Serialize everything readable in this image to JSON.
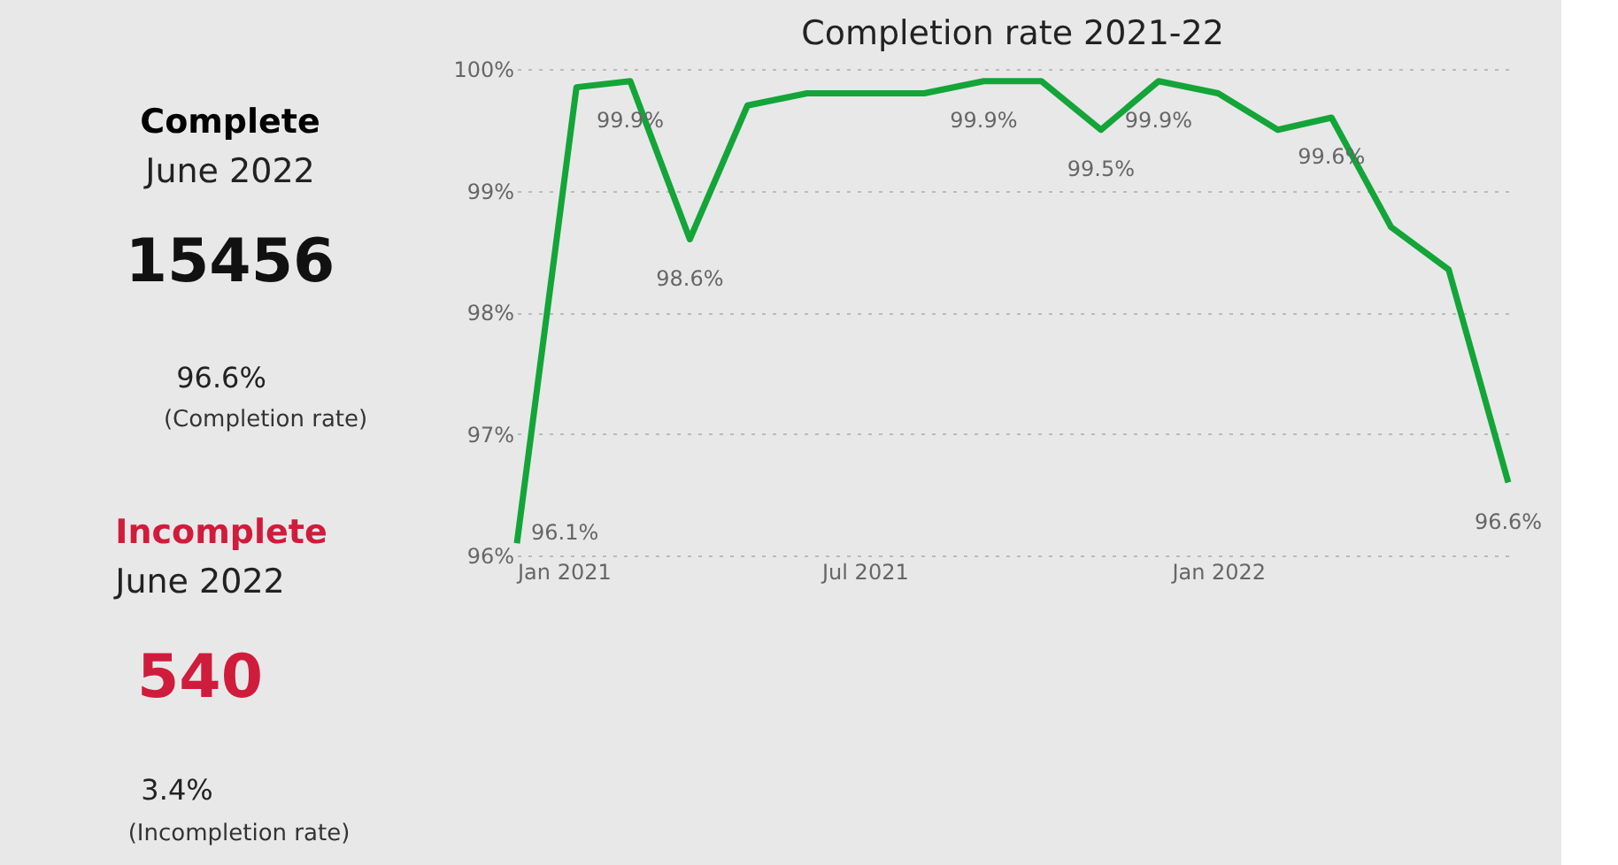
{
  "chart_data": [
    {
      "type": "other",
      "annotations": [
        "Complete",
        "June 2022",
        "15456",
        "96.6%",
        "(Completion rate)",
        "Incomplete",
        "June 2022",
        "540",
        "3.4%",
        "(Incompletion rate)"
      ],
      "colors": [
        "#000000",
        "#222222",
        "#111111",
        "#222222",
        "#333333",
        "#d01c3c",
        "#222222",
        "#d01c3c",
        "#222222",
        "#333333"
      ]
    },
    {
      "type": "line",
      "title": "Completion rate 2021-22",
      "x": [
        "2021-01",
        "2021-02",
        "2021-03",
        "2021-04",
        "2021-05",
        "2021-06",
        "2021-07",
        "2021-08",
        "2021-09",
        "2021-10",
        "2021-11",
        "2021-12",
        "2022-01",
        "2022-02",
        "2022-03",
        "2022-04",
        "2022-05",
        "2022-06"
      ],
      "series": [
        {
          "color": "#13a538",
          "values": [
            96.1,
            99.85,
            99.9,
            98.6,
            99.7,
            99.8,
            99.8,
            99.8,
            99.9,
            99.9,
            99.5,
            99.9,
            99.8,
            99.5,
            99.6,
            98.7,
            98.35,
            96.6
          ],
          "value_labels": [
            "96.1%",
            null,
            "99.9%",
            "98.6%",
            null,
            null,
            null,
            null,
            "99.9%",
            null,
            "99.5%",
            "99.9%",
            null,
            null,
            "99.6%",
            null,
            null,
            "96.6%"
          ]
        }
      ],
      "xlim": [
        "2021-01",
        "2022-06"
      ],
      "xticks": [
        {
          "value": "2021-01",
          "label": "Jan 2021"
        },
        {
          "value": "2021-07",
          "label": "Jul 2021"
        },
        {
          "value": "2022-01",
          "label": "Jan 2022"
        }
      ],
      "ylim": [
        96,
        100
      ],
      "yticks": [
        {
          "value": 96,
          "label": "96%"
        },
        {
          "value": 97,
          "label": "97%"
        },
        {
          "value": 98,
          "label": "98%"
        },
        {
          "value": 99,
          "label": "99%"
        },
        {
          "value": 100,
          "label": "100%"
        }
      ],
      "grid": "y",
      "marker": "none",
      "line_style": "solid"
    }
  ]
}
